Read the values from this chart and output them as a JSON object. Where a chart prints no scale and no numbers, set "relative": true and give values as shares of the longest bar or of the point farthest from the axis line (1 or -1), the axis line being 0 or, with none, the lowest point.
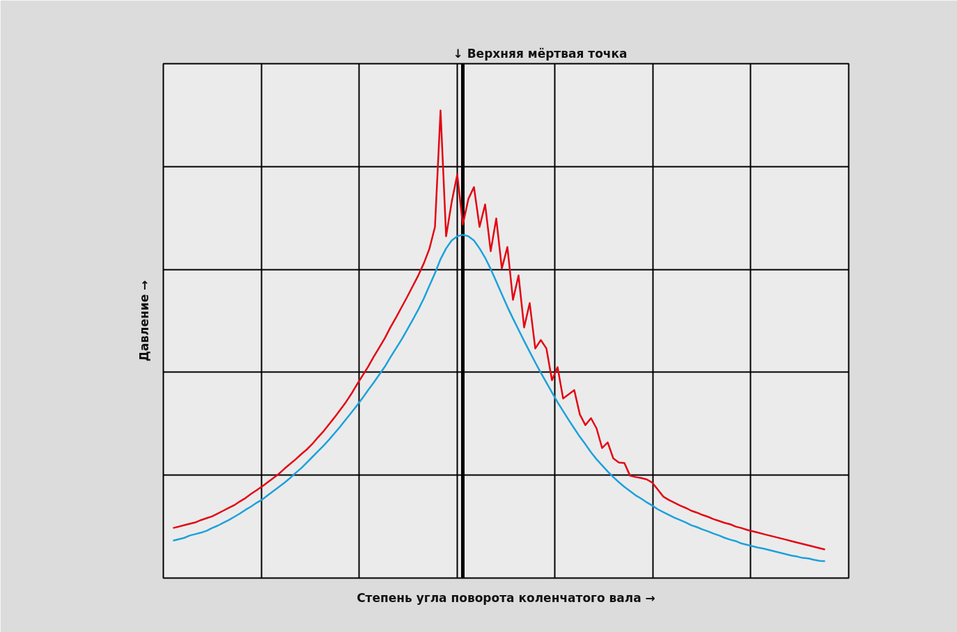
{
  "chart_data": {
    "type": "line",
    "relative": true,
    "grid": true,
    "xlabel": "Степень угла поворота коленчатого вала →",
    "ylabel": "Давление →",
    "categories": [
      null,
      null,
      null,
      null,
      null,
      null,
      null,
      null,
      null,
      null,
      null,
      null,
      null,
      null,
      null,
      null,
      null,
      null,
      null,
      null,
      null,
      null,
      null,
      null,
      null,
      null,
      null,
      null,
      null,
      null,
      null,
      null,
      null,
      null,
      null,
      null,
      null,
      null,
      null,
      null,
      null,
      null,
      null,
      null,
      null,
      null,
      null,
      null,
      null,
      null,
      null,
      null,
      null,
      null,
      null,
      null,
      null,
      null,
      null,
      null,
      null,
      null,
      null,
      null,
      null,
      null,
      null,
      null,
      null,
      null,
      null,
      null,
      null,
      null,
      null,
      null,
      null,
      null,
      null,
      null,
      null,
      null,
      null,
      null,
      null,
      null,
      null,
      null,
      null,
      null,
      null,
      null,
      null,
      null,
      null,
      null,
      null,
      null,
      null,
      null,
      null,
      null,
      null,
      null,
      null,
      null,
      null,
      null,
      null,
      null,
      null,
      null,
      null,
      null,
      null,
      null,
      null,
      null
    ],
    "series": [
      {
        "color": "#e30613",
        "values": [
          0.107,
          0.11,
          0.113,
          0.116,
          0.119,
          0.124,
          0.128,
          0.132,
          0.138,
          0.144,
          0.15,
          0.156,
          0.164,
          0.171,
          0.18,
          0.188,
          0.196,
          0.205,
          0.214,
          0.223,
          0.234,
          0.244,
          0.254,
          0.265,
          0.275,
          0.287,
          0.301,
          0.314,
          0.329,
          0.344,
          0.36,
          0.376,
          0.394,
          0.414,
          0.433,
          0.452,
          0.473,
          0.493,
          0.513,
          0.536,
          0.557,
          0.579,
          0.601,
          0.624,
          0.647,
          0.673,
          0.704,
          0.751,
          1,
          0.731,
          0.804,
          0.863,
          0.756,
          0.811,
          0.836,
          0.751,
          0.799,
          0.699,
          0.769,
          0.662,
          0.708,
          0.595,
          0.647,
          0.536,
          0.588,
          0.491,
          0.509,
          0.491,
          0.423,
          0.451,
          0.384,
          0.393,
          0.402,
          0.35,
          0.327,
          0.342,
          0.32,
          0.278,
          0.29,
          0.256,
          0.247,
          0.246,
          0.219,
          0.216,
          0.214,
          0.211,
          0.204,
          0.189,
          0.174,
          0.167,
          0.161,
          0.155,
          0.15,
          0.144,
          0.14,
          0.135,
          0.131,
          0.126,
          0.122,
          0.118,
          0.115,
          0.11,
          0.107,
          0.103,
          0.1,
          0.097,
          0.094,
          0.091,
          0.088,
          0.085,
          0.082,
          0.079,
          0.076,
          0.073,
          0.07,
          0.067,
          0.064,
          0.061
        ]
      },
      {
        "color": "#1ba1dc",
        "values": [
          0.08,
          0.083,
          0.086,
          0.091,
          0.094,
          0.097,
          0.101,
          0.107,
          0.112,
          0.118,
          0.124,
          0.131,
          0.138,
          0.146,
          0.153,
          0.161,
          0.168,
          0.177,
          0.186,
          0.195,
          0.204,
          0.214,
          0.225,
          0.235,
          0.247,
          0.259,
          0.271,
          0.283,
          0.296,
          0.31,
          0.324,
          0.339,
          0.354,
          0.369,
          0.385,
          0.402,
          0.418,
          0.435,
          0.452,
          0.472,
          0.491,
          0.51,
          0.531,
          0.552,
          0.574,
          0.598,
          0.625,
          0.652,
          0.682,
          0.705,
          0.722,
          0.731,
          0.734,
          0.731,
          0.722,
          0.705,
          0.685,
          0.661,
          0.634,
          0.607,
          0.58,
          0.555,
          0.531,
          0.507,
          0.484,
          0.461,
          0.439,
          0.418,
          0.397,
          0.376,
          0.357,
          0.338,
          0.32,
          0.302,
          0.286,
          0.269,
          0.254,
          0.241,
          0.228,
          0.216,
          0.205,
          0.195,
          0.186,
          0.177,
          0.17,
          0.162,
          0.155,
          0.147,
          0.141,
          0.135,
          0.129,
          0.124,
          0.119,
          0.113,
          0.109,
          0.104,
          0.1,
          0.095,
          0.091,
          0.086,
          0.082,
          0.079,
          0.074,
          0.071,
          0.068,
          0.065,
          0.063,
          0.06,
          0.057,
          0.054,
          0.051,
          0.048,
          0.046,
          0.043,
          0.042,
          0.039,
          0.037,
          0.036
        ]
      }
    ],
    "annotations": [
      "↓ Верхняя мёртвая точка"
    ]
  }
}
